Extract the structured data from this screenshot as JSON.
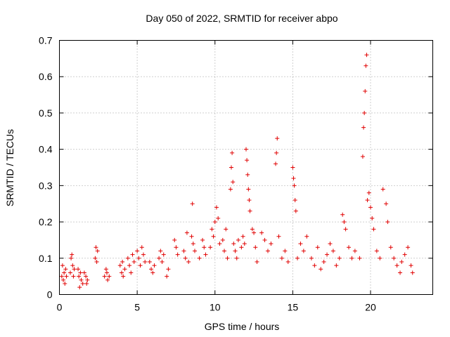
{
  "chart_data": {
    "type": "scatter",
    "title": "Day 050 of 2022, SRMTID for receiver abpo",
    "xlabel": "GPS time / hours",
    "ylabel": "SRMTID / TECUs",
    "xlim": [
      0,
      24
    ],
    "ylim": [
      0,
      0.7
    ],
    "xticks": [
      0,
      5,
      10,
      15,
      20
    ],
    "xtick_labels": [
      "0",
      "5",
      "10",
      "15",
      "20"
    ],
    "yticks": [
      0,
      0.1,
      0.2,
      0.3,
      0.4,
      0.5,
      0.6,
      0.7
    ],
    "ytick_labels": [
      "0",
      "0.1",
      "0.2",
      "0.3",
      "0.4",
      "0.5",
      "0.6",
      "0.7"
    ],
    "grid": true,
    "marker": "+",
    "color": "#e00000",
    "series": [
      {
        "name": "SRMTID",
        "points": [
          [
            0.15,
            0.05
          ],
          [
            0.2,
            0.08
          ],
          [
            0.25,
            0.04
          ],
          [
            0.3,
            0.06
          ],
          [
            0.35,
            0.03
          ],
          [
            0.4,
            0.07
          ],
          [
            0.45,
            0.05
          ],
          [
            0.7,
            0.06
          ],
          [
            0.75,
            0.1
          ],
          [
            0.8,
            0.11
          ],
          [
            0.85,
            0.08
          ],
          [
            0.9,
            0.05
          ],
          [
            0.95,
            0.07
          ],
          [
            1.2,
            0.07
          ],
          [
            1.25,
            0.05
          ],
          [
            1.3,
            0.02
          ],
          [
            1.35,
            0.06
          ],
          [
            1.4,
            0.04
          ],
          [
            1.5,
            0.03
          ],
          [
            1.6,
            0.06
          ],
          [
            1.7,
            0.05
          ],
          [
            1.75,
            0.03
          ],
          [
            1.8,
            0.04
          ],
          [
            2.3,
            0.1
          ],
          [
            2.35,
            0.13
          ],
          [
            2.4,
            0.09
          ],
          [
            2.45,
            0.12
          ],
          [
            2.9,
            0.05
          ],
          [
            3.0,
            0.07
          ],
          [
            3.05,
            0.06
          ],
          [
            3.1,
            0.04
          ],
          [
            3.2,
            0.05
          ],
          [
            3.9,
            0.08
          ],
          [
            4.0,
            0.06
          ],
          [
            4.05,
            0.09
          ],
          [
            4.1,
            0.05
          ],
          [
            4.2,
            0.07
          ],
          [
            4.4,
            0.1
          ],
          [
            4.5,
            0.08
          ],
          [
            4.6,
            0.06
          ],
          [
            4.7,
            0.11
          ],
          [
            4.8,
            0.09
          ],
          [
            5.0,
            0.12
          ],
          [
            5.1,
            0.1
          ],
          [
            5.2,
            0.08
          ],
          [
            5.3,
            0.13
          ],
          [
            5.4,
            0.11
          ],
          [
            5.5,
            0.09
          ],
          [
            5.8,
            0.09
          ],
          [
            5.9,
            0.07
          ],
          [
            6.0,
            0.06
          ],
          [
            6.1,
            0.08
          ],
          [
            6.4,
            0.1
          ],
          [
            6.5,
            0.12
          ],
          [
            6.6,
            0.09
          ],
          [
            6.7,
            0.11
          ],
          [
            6.9,
            0.05
          ],
          [
            7.0,
            0.07
          ],
          [
            7.4,
            0.15
          ],
          [
            7.5,
            0.13
          ],
          [
            7.6,
            0.11
          ],
          [
            8.0,
            0.12
          ],
          [
            8.1,
            0.1
          ],
          [
            8.2,
            0.17
          ],
          [
            8.3,
            0.09
          ],
          [
            8.5,
            0.16
          ],
          [
            8.55,
            0.25
          ],
          [
            8.6,
            0.14
          ],
          [
            8.7,
            0.12
          ],
          [
            9.0,
            0.1
          ],
          [
            9.2,
            0.15
          ],
          [
            9.3,
            0.13
          ],
          [
            9.4,
            0.11
          ],
          [
            9.7,
            0.13
          ],
          [
            9.8,
            0.18
          ],
          [
            9.9,
            0.16
          ],
          [
            10.0,
            0.2
          ],
          [
            10.1,
            0.24
          ],
          [
            10.2,
            0.21
          ],
          [
            10.3,
            0.14
          ],
          [
            10.5,
            0.15
          ],
          [
            10.6,
            0.12
          ],
          [
            10.7,
            0.18
          ],
          [
            10.8,
            0.1
          ],
          [
            11.0,
            0.29
          ],
          [
            11.05,
            0.35
          ],
          [
            11.1,
            0.39
          ],
          [
            11.15,
            0.31
          ],
          [
            11.2,
            0.14
          ],
          [
            11.3,
            0.12
          ],
          [
            11.4,
            0.1
          ],
          [
            11.5,
            0.15
          ],
          [
            11.7,
            0.13
          ],
          [
            11.8,
            0.16
          ],
          [
            11.9,
            0.14
          ],
          [
            12.0,
            0.4
          ],
          [
            12.05,
            0.37
          ],
          [
            12.1,
            0.33
          ],
          [
            12.15,
            0.29
          ],
          [
            12.2,
            0.26
          ],
          [
            12.25,
            0.23
          ],
          [
            12.4,
            0.18
          ],
          [
            12.5,
            0.17
          ],
          [
            12.6,
            0.13
          ],
          [
            12.7,
            0.09
          ],
          [
            13.0,
            0.17
          ],
          [
            13.2,
            0.15
          ],
          [
            13.4,
            0.12
          ],
          [
            13.6,
            0.14
          ],
          [
            13.9,
            0.36
          ],
          [
            13.95,
            0.39
          ],
          [
            14.0,
            0.43
          ],
          [
            14.1,
            0.16
          ],
          [
            14.3,
            0.1
          ],
          [
            14.5,
            0.12
          ],
          [
            14.7,
            0.09
          ],
          [
            15.0,
            0.35
          ],
          [
            15.05,
            0.32
          ],
          [
            15.1,
            0.3
          ],
          [
            15.15,
            0.26
          ],
          [
            15.2,
            0.23
          ],
          [
            15.3,
            0.1
          ],
          [
            15.5,
            0.14
          ],
          [
            15.7,
            0.12
          ],
          [
            15.9,
            0.16
          ],
          [
            16.2,
            0.1
          ],
          [
            16.4,
            0.08
          ],
          [
            16.6,
            0.13
          ],
          [
            16.8,
            0.07
          ],
          [
            17.0,
            0.09
          ],
          [
            17.2,
            0.11
          ],
          [
            17.4,
            0.14
          ],
          [
            17.6,
            0.12
          ],
          [
            17.8,
            0.08
          ],
          [
            18.0,
            0.1
          ],
          [
            18.2,
            0.22
          ],
          [
            18.3,
            0.2
          ],
          [
            18.4,
            0.18
          ],
          [
            18.6,
            0.13
          ],
          [
            18.8,
            0.1
          ],
          [
            19.0,
            0.12
          ],
          [
            19.3,
            0.1
          ],
          [
            19.5,
            0.38
          ],
          [
            19.55,
            0.46
          ],
          [
            19.6,
            0.5
          ],
          [
            19.65,
            0.56
          ],
          [
            19.7,
            0.63
          ],
          [
            19.75,
            0.66
          ],
          [
            19.8,
            0.26
          ],
          [
            19.9,
            0.28
          ],
          [
            20.0,
            0.24
          ],
          [
            20.1,
            0.21
          ],
          [
            20.2,
            0.18
          ],
          [
            20.4,
            0.12
          ],
          [
            20.6,
            0.1
          ],
          [
            20.8,
            0.29
          ],
          [
            21.0,
            0.25
          ],
          [
            21.1,
            0.2
          ],
          [
            21.3,
            0.13
          ],
          [
            21.5,
            0.1
          ],
          [
            21.7,
            0.08
          ],
          [
            21.9,
            0.06
          ],
          [
            22.0,
            0.09
          ],
          [
            22.2,
            0.11
          ],
          [
            22.4,
            0.13
          ],
          [
            22.6,
            0.08
          ],
          [
            22.7,
            0.06
          ]
        ]
      }
    ]
  }
}
